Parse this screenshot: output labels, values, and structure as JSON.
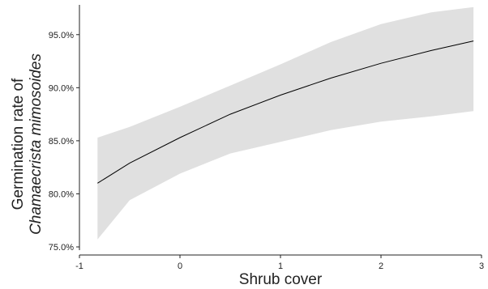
{
  "chart_data": {
    "type": "line",
    "xlabel": "Shrub cover",
    "ylabel_line1": "Germination rate of",
    "ylabel_line2": "Chamaecrista mimosoides",
    "xlim": [
      -1,
      3
    ],
    "ylim": [
      75,
      97.5
    ],
    "x_ticks": [
      -1,
      0,
      1,
      2,
      3
    ],
    "x_tick_labels": [
      "-1",
      "0",
      "1",
      "2",
      "3"
    ],
    "y_ticks": [
      75,
      80,
      85,
      90,
      95
    ],
    "y_tick_labels": [
      "75.0%",
      "80.0%",
      "85.0%",
      "90.0%",
      "95.0%"
    ],
    "grid": false,
    "series": [
      {
        "x": [
          -0.82,
          -0.5,
          0,
          0.5,
          1,
          1.5,
          2,
          2.5,
          2.92
        ],
        "y": [
          81.0,
          82.9,
          85.3,
          87.5,
          89.3,
          90.9,
          92.3,
          93.5,
          94.4
        ],
        "lower": [
          75.7,
          79.4,
          81.9,
          83.8,
          84.9,
          86.0,
          86.8,
          87.3,
          87.8
        ],
        "upper": [
          85.3,
          86.3,
          88.2,
          90.2,
          92.2,
          94.3,
          96.0,
          97.1,
          97.6
        ]
      }
    ],
    "colors": {
      "line": "#000000",
      "band": "#e0e0e0",
      "axis": "#222222"
    }
  }
}
